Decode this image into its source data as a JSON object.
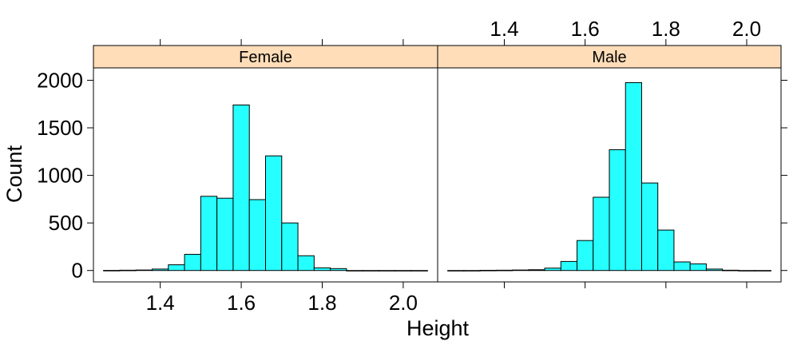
{
  "chart_data": {
    "type": "bar",
    "xlabel": "Height",
    "ylabel": "Count",
    "ylim": [
      -120,
      2130
    ],
    "xlim": [
      1.235,
      2.085
    ],
    "y_ticks": [
      0,
      500,
      1000,
      1500,
      2000
    ],
    "y_tick_labels": [
      "0",
      "500",
      "1000",
      "1500",
      "2000"
    ],
    "x_ticks": [
      1.4,
      1.6,
      1.8,
      2.0
    ],
    "x_tick_labels": [
      "1.4",
      "1.6",
      "1.8",
      "2.0"
    ],
    "bin_width": 0.04,
    "colors": {
      "bar_fill": "#26FFFF",
      "bar_stroke": "#000000",
      "strip_fill": "#FFDDB8"
    },
    "panels": [
      {
        "name": "Female",
        "bin_starts": [
          1.26,
          1.3,
          1.34,
          1.38,
          1.42,
          1.46,
          1.5,
          1.54,
          1.58,
          1.62,
          1.66,
          1.7,
          1.74,
          1.78,
          1.82,
          1.86,
          1.9,
          1.94,
          1.98,
          2.02
        ],
        "values": [
          1,
          3,
          5,
          15,
          60,
          170,
          780,
          760,
          1740,
          745,
          1205,
          500,
          155,
          28,
          20,
          0,
          0,
          0,
          0,
          0
        ]
      },
      {
        "name": "Male",
        "bin_starts": [
          1.26,
          1.3,
          1.34,
          1.38,
          1.42,
          1.46,
          1.5,
          1.54,
          1.58,
          1.62,
          1.66,
          1.7,
          1.74,
          1.78,
          1.82,
          1.86,
          1.9,
          1.94,
          1.98,
          2.02
        ],
        "values": [
          0,
          0,
          2,
          3,
          5,
          8,
          25,
          95,
          315,
          770,
          1270,
          1975,
          920,
          425,
          90,
          70,
          15,
          3,
          0,
          0
        ]
      }
    ]
  }
}
